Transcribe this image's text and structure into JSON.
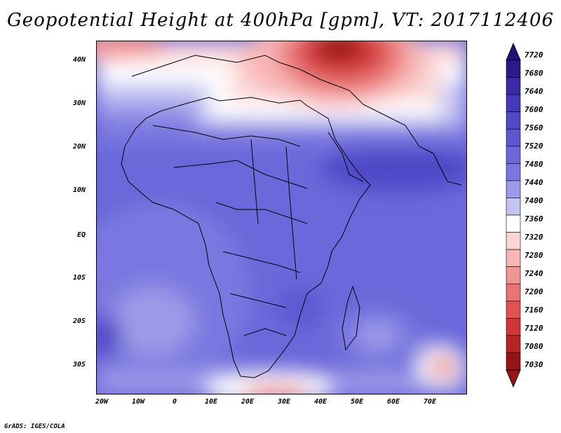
{
  "title": "Geopotential Height at 400hPa [gpm], VT: 2017112406",
  "credit": "GrADS: IGES/COLA",
  "map": {
    "lon_ticks": [
      "20W",
      "10W",
      "0",
      "10E",
      "20E",
      "30E",
      "40E",
      "50E",
      "60E",
      "70E"
    ],
    "lat_ticks": [
      "40N",
      "30N",
      "20N",
      "10N",
      "EQ",
      "10S",
      "20S",
      "30S"
    ]
  },
  "colorbar": {
    "labels": [
      "7720",
      "7680",
      "7640",
      "7600",
      "7560",
      "7520",
      "7480",
      "7440",
      "7400",
      "7360",
      "7320",
      "7280",
      "7240",
      "7200",
      "7160",
      "7120",
      "7080",
      "7030"
    ],
    "colors": [
      "#2a1a8a",
      "#3a2aa8",
      "#4538bc",
      "#4f4ac8",
      "#5c58d2",
      "#6a68da",
      "#7a78e0",
      "#9c9ae8",
      "#c4c4f2",
      "#ffffff",
      "#fcd6d6",
      "#f8b6b6",
      "#f29494",
      "#ea7474",
      "#e05252",
      "#d03636",
      "#b82424",
      "#961414"
    ],
    "top_color": "#241078",
    "bottom_color": "#961414"
  }
}
